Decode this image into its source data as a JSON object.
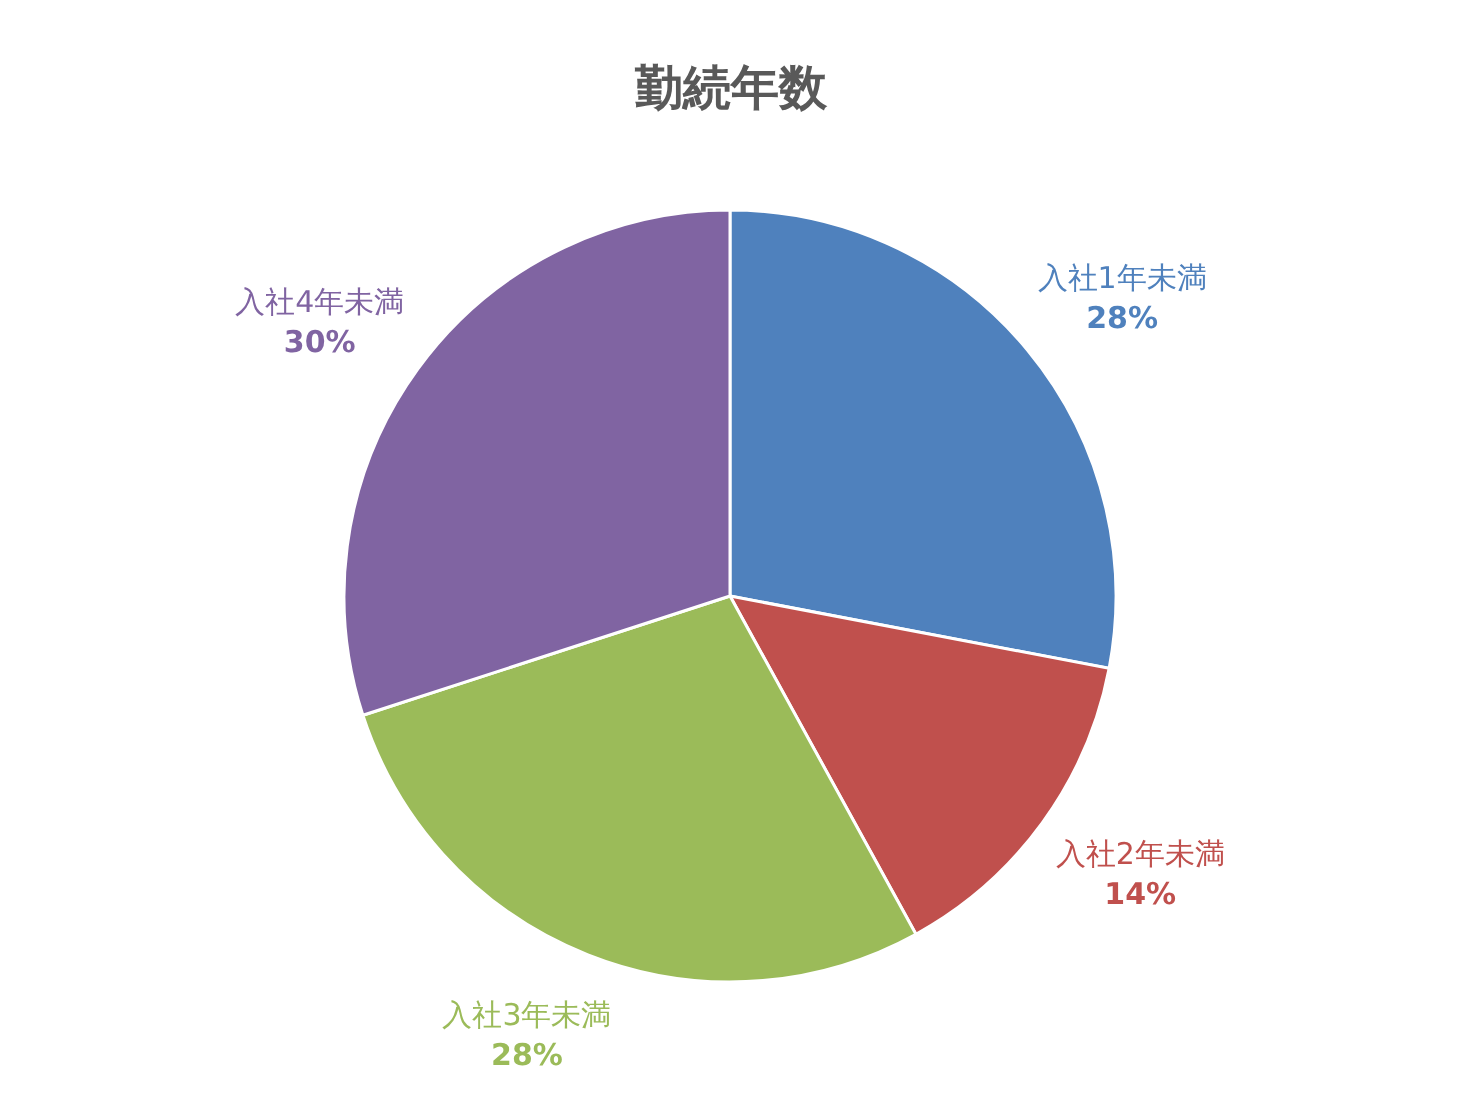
{
  "chart_data": {
    "type": "pie",
    "title": "勤続年数",
    "categories": [
      "入社1年未満",
      "入社2年未満",
      "入社3年未満",
      "入社4年未満"
    ],
    "values": [
      28,
      14,
      28,
      30
    ],
    "colors": [
      "#4f81bd",
      "#c0504d",
      "#9bbb59",
      "#8064a2"
    ],
    "value_labels": [
      "28%",
      "14%",
      "28%",
      "30%"
    ]
  }
}
